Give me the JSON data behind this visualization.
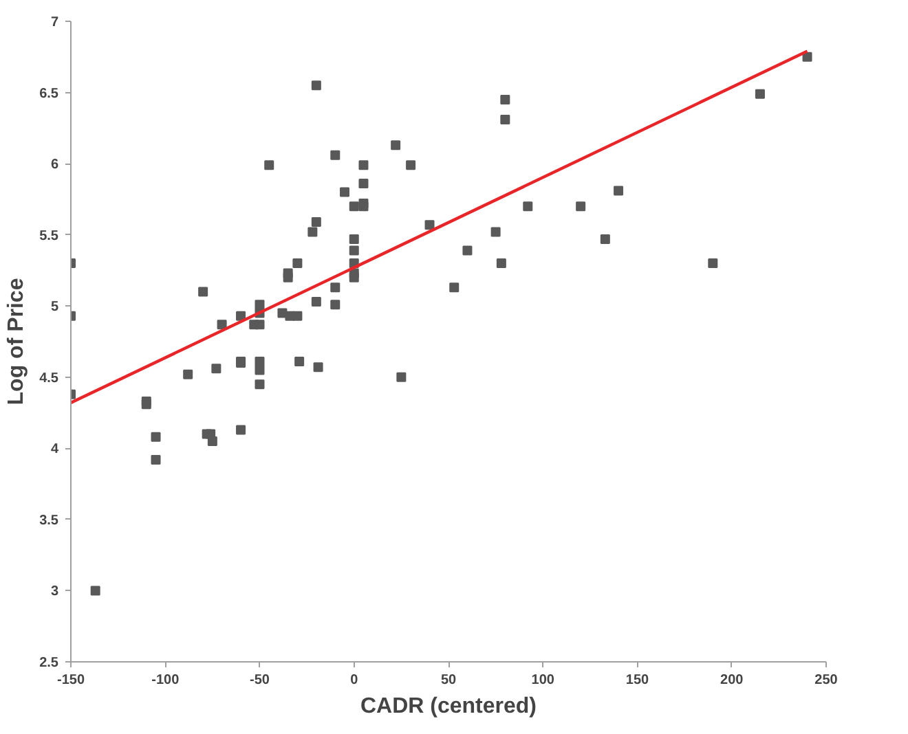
{
  "chart_data": {
    "type": "scatter",
    "xlabel": "CADR (centered)",
    "ylabel": "Log of Price",
    "xlim": [
      -150,
      250
    ],
    "ylim": [
      2.5,
      7
    ],
    "xticks": [
      -150,
      -100,
      -50,
      0,
      50,
      100,
      150,
      200,
      250
    ],
    "yticks": [
      2.5,
      3,
      3.5,
      4,
      4.5,
      5,
      5.5,
      6,
      6.5,
      7
    ],
    "grid": false,
    "marker": "square",
    "series": [
      {
        "color": "#595959",
        "x": [
          -150,
          -150,
          -150,
          -137,
          -110,
          -110,
          -105,
          -105,
          -88,
          -80,
          -78,
          -76,
          -75,
          -73,
          -70,
          -60,
          -60,
          -60,
          -60,
          -53,
          -50,
          -50,
          -50,
          -50,
          -50,
          -50,
          -45,
          -38,
          -35,
          -35,
          -34,
          -30,
          -30,
          -29,
          -22,
          -20,
          -20,
          -20,
          -19,
          -10,
          -10,
          -10,
          -5,
          0,
          0,
          0,
          0,
          0,
          0,
          5,
          5,
          5,
          5,
          22,
          25,
          30,
          40,
          53,
          60,
          75,
          78,
          80,
          80,
          92,
          120,
          133,
          140,
          190,
          215,
          240
        ],
        "values": [
          5.3,
          4.93,
          4.38,
          3.0,
          4.33,
          4.31,
          4.08,
          3.92,
          4.52,
          5.1,
          4.1,
          4.1,
          4.05,
          4.56,
          4.87,
          4.93,
          4.61,
          4.6,
          4.13,
          4.87,
          5.01,
          4.95,
          4.87,
          4.61,
          4.55,
          4.45,
          5.99,
          4.95,
          5.23,
          5.2,
          4.93,
          4.93,
          5.3,
          4.61,
          5.52,
          5.59,
          6.55,
          5.03,
          4.57,
          6.06,
          5.13,
          5.01,
          5.8,
          5.7,
          5.47,
          5.39,
          5.3,
          5.23,
          5.2,
          5.99,
          5.86,
          5.72,
          5.7,
          6.13,
          4.5,
          5.99,
          5.57,
          5.13,
          5.39,
          5.52,
          5.3,
          6.45,
          6.31,
          5.7,
          5.7,
          5.47,
          5.81,
          5.3,
          6.49,
          6.75
        ]
      },
      {
        "type": "line",
        "color": "#e8262a",
        "marker": "none",
        "line_style": "solid",
        "x": [
          -150,
          240
        ],
        "values": [
          4.32,
          6.79
        ]
      }
    ]
  }
}
